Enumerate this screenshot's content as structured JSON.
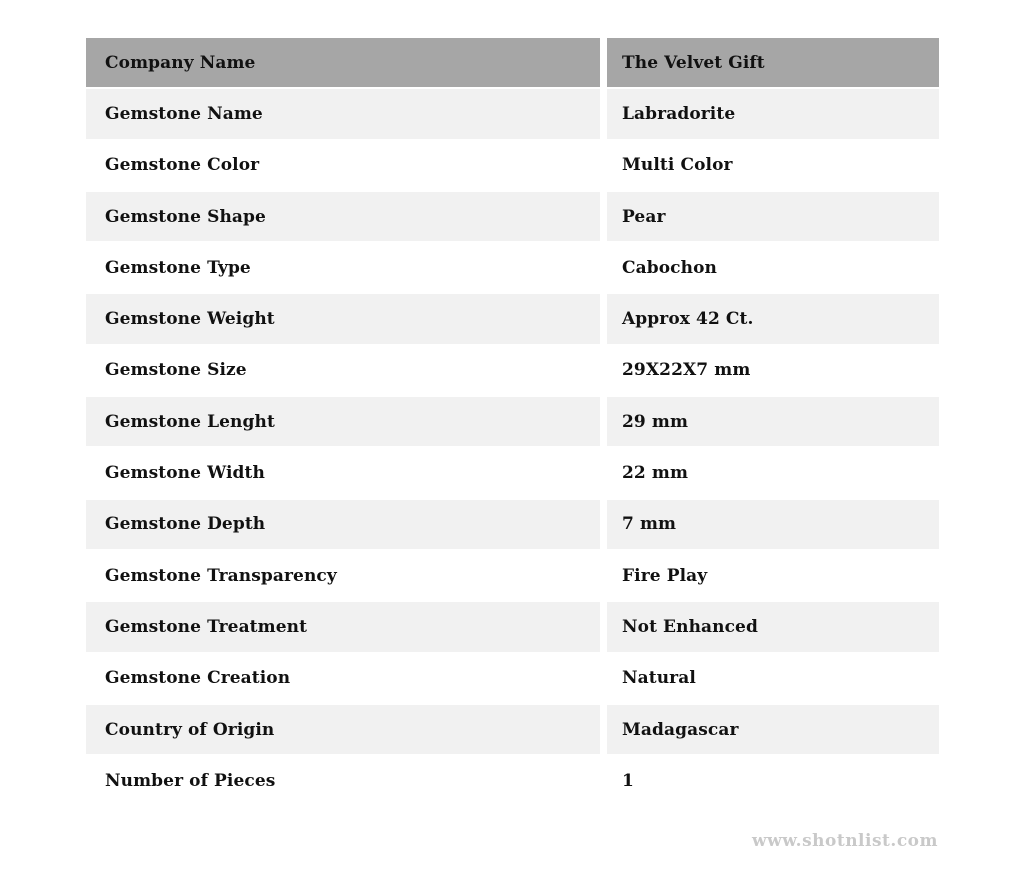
{
  "colors": {
    "header_bg": "#a6a6a6",
    "alt_row_bg": "#f1f1f1",
    "row_bg": "#ffffff",
    "text": "#111111",
    "watermark": "#c9c9c9",
    "page_bg": "#ffffff"
  },
  "table": {
    "header": {
      "label": "Company Name",
      "value": "The Velvet Gift"
    },
    "rows": [
      {
        "label": "Gemstone Name",
        "value": "Labradorite"
      },
      {
        "label": "Gemstone Color",
        "value": "Multi Color"
      },
      {
        "label": "Gemstone Shape",
        "value": "Pear"
      },
      {
        "label": "Gemstone Type",
        "value": "Cabochon"
      },
      {
        "label": "Gemstone Weight",
        "value": "Approx 42 Ct."
      },
      {
        "label": "Gemstone Size",
        "value": "29X22X7 mm"
      },
      {
        "label": "Gemstone Lenght",
        "value": "29 mm"
      },
      {
        "label": "Gemstone Width",
        "value": "22 mm"
      },
      {
        "label": "Gemstone Depth",
        "value": "7 mm"
      },
      {
        "label": "Gemstone Transparency",
        "value": "Fire Play"
      },
      {
        "label": "Gemstone Treatment",
        "value": "Not Enhanced"
      },
      {
        "label": "Gemstone Creation",
        "value": "Natural"
      },
      {
        "label": "Country of Origin",
        "value": "Madagascar"
      },
      {
        "label": "Number of Pieces",
        "value": "1"
      }
    ]
  },
  "watermark": {
    "text": "www.shotnlist.com"
  }
}
